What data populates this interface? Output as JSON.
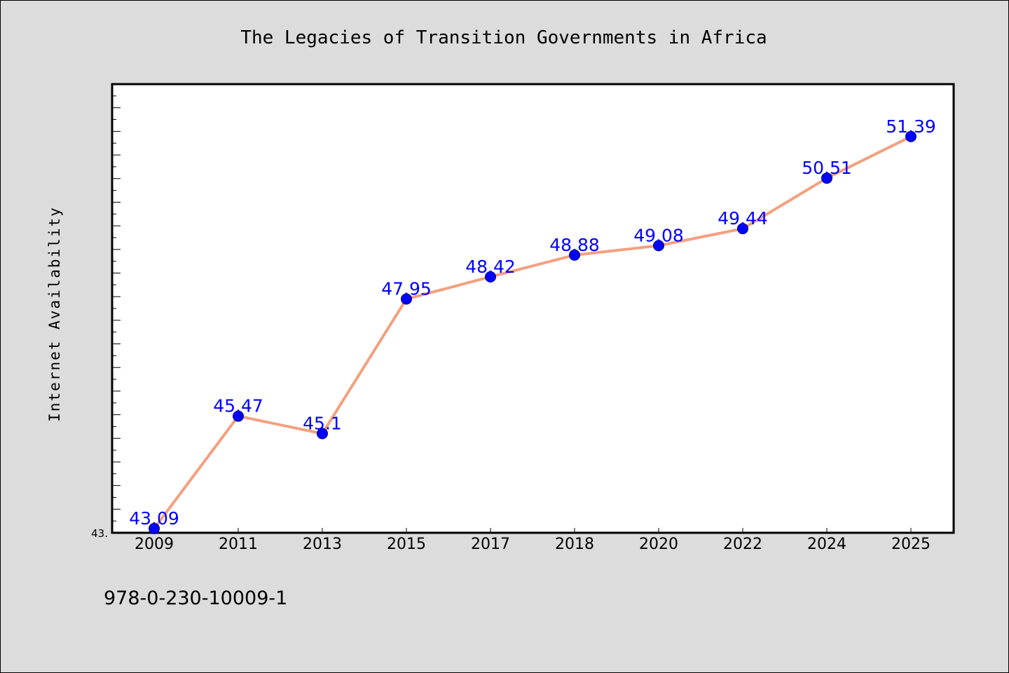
{
  "chart_data": {
    "type": "line",
    "title": "The Legacies of Transition Governments in Africa",
    "xlabel": "",
    "ylabel": "Internet Availability",
    "categories": [
      "2009",
      "2011",
      "2013",
      "2015",
      "2017",
      "2018",
      "2020",
      "2022",
      "2024",
      "2025"
    ],
    "values": [
      43.09,
      45.47,
      45.1,
      47.95,
      48.42,
      48.88,
      49.08,
      49.44,
      50.51,
      51.39
    ],
    "data_labels": [
      "43.09",
      "45.47",
      "45.1",
      "47.95",
      "48.42",
      "48.88",
      "49.08",
      "49.44",
      "50.51",
      "51.39"
    ],
    "y_tick_labels": [
      "43."
    ],
    "ylim": [
      43,
      52.5
    ],
    "grid": false,
    "legend": "none",
    "colors": {
      "line": "#f4a07f",
      "marker": "#0000ff",
      "data_label": "#0000ff",
      "plot_background": "#ffffff",
      "figure_background": "#dcdcdc"
    }
  },
  "footer": {
    "isbn": "978-0-230-10009-1"
  }
}
